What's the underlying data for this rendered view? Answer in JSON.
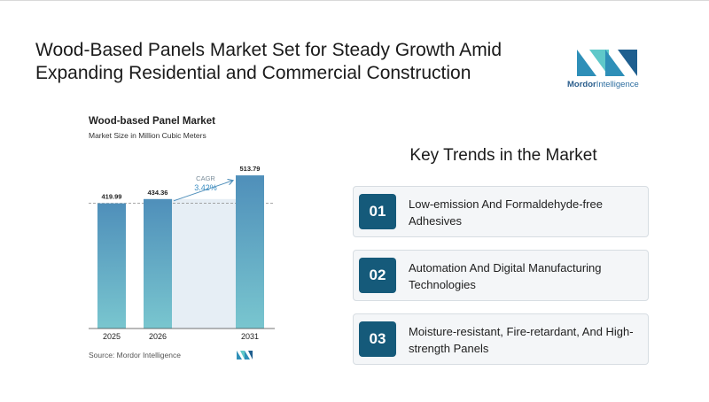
{
  "headline": "Wood-Based Panels Market Set for Steady Growth Amid Expanding Residential and Commercial Construction",
  "logo": {
    "brand_bold": "Mordor",
    "brand_rest": "Intelligence",
    "colors": [
      "#2e8fb8",
      "#5fc8c9",
      "#1f5f8f"
    ]
  },
  "chart_data": {
    "type": "bar",
    "title": "Wood-based Panel Market",
    "subtitle": "Market Size in Million Cubic Meters",
    "categories": [
      "2025",
      "2026",
      "2031"
    ],
    "values": [
      419.99,
      434.36,
      513.79
    ],
    "value_labels": [
      "419.99",
      "434.36",
      "513.79"
    ],
    "cagr_label": "CAGR",
    "cagr_value": "3.42%",
    "source": "Source: Mordor Intelligence",
    "bar_color_top": "#4f8fba",
    "bar_color_bottom": "#79c6cf",
    "span_fill": "#e6eef5"
  },
  "trends": {
    "title": "Key Trends in the Market",
    "items": [
      {
        "num": "01",
        "text": "Low-emission And Formaldehyde-free Adhesives"
      },
      {
        "num": "02",
        "text": "Automation And Digital Manufacturing Technologies"
      },
      {
        "num": "03",
        "text": "Moisture-resistant, Fire-retardant, And High-strength Panels"
      }
    ],
    "accent": "#155a7a"
  }
}
